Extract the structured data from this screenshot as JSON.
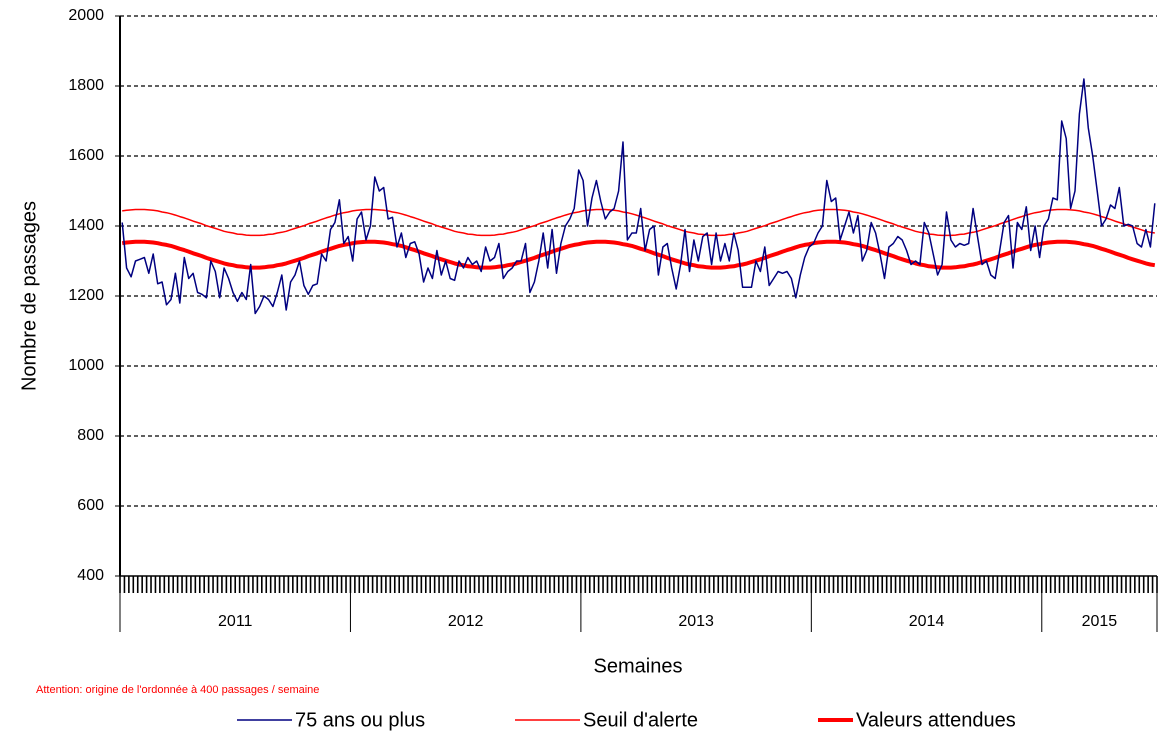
{
  "chart_data": {
    "type": "line",
    "y_label": "Nombre de passages",
    "x_label": "Semaines",
    "annotation": "Attention: origine de l'ordonnée à 400 passages / semaine",
    "ylim": [
      400,
      2000
    ],
    "yticks": [
      400,
      600,
      800,
      1000,
      1200,
      1400,
      1600,
      1800,
      2000
    ],
    "grid": true,
    "legend": "bottom",
    "categories": [
      "2011",
      "2011",
      "2011",
      "2011",
      "2011",
      "2011",
      "2011",
      "2011",
      "2011",
      "2011",
      "2011",
      "2011",
      "2011",
      "2011",
      "2011",
      "2011",
      "2011",
      "2011",
      "2011",
      "2011",
      "2011",
      "2011",
      "2011",
      "2011",
      "2011",
      "2011",
      "2011",
      "2011",
      "2011",
      "2011",
      "2011",
      "2011",
      "2011",
      "2011",
      "2011",
      "2011",
      "2011",
      "2011",
      "2011",
      "2011",
      "2011",
      "2011",
      "2011",
      "2011",
      "2011",
      "2011",
      "2011",
      "2011",
      "2011",
      "2011",
      "2011",
      "2011",
      "2012",
      "2012",
      "2012",
      "2012",
      "2012",
      "2012",
      "2012",
      "2012",
      "2012",
      "2012",
      "2012",
      "2012",
      "2012",
      "2012",
      "2012",
      "2012",
      "2012",
      "2012",
      "2012",
      "2012",
      "2012",
      "2012",
      "2012",
      "2012",
      "2012",
      "2012",
      "2012",
      "2012",
      "2012",
      "2012",
      "2012",
      "2012",
      "2012",
      "2012",
      "2012",
      "2012",
      "2012",
      "2012",
      "2012",
      "2012",
      "2012",
      "2012",
      "2012",
      "2012",
      "2012",
      "2012",
      "2012",
      "2012",
      "2012",
      "2012",
      "2012",
      "2012",
      "2013",
      "2013",
      "2013",
      "2013",
      "2013",
      "2013",
      "2013",
      "2013",
      "2013",
      "2013",
      "2013",
      "2013",
      "2013",
      "2013",
      "2013",
      "2013",
      "2013",
      "2013",
      "2013",
      "2013",
      "2013",
      "2013",
      "2013",
      "2013",
      "2013",
      "2013",
      "2013",
      "2013",
      "2013",
      "2013",
      "2013",
      "2013",
      "2013",
      "2013",
      "2013",
      "2013",
      "2013",
      "2013",
      "2013",
      "2013",
      "2013",
      "2013",
      "2013",
      "2013",
      "2013",
      "2013",
      "2013",
      "2013",
      "2013",
      "2013",
      "2013",
      "2013",
      "2014",
      "2014",
      "2014",
      "2014",
      "2014",
      "2014",
      "2014",
      "2014",
      "2014",
      "2014",
      "2014",
      "2014",
      "2014",
      "2014",
      "2014",
      "2014",
      "2014",
      "2014",
      "2014",
      "2014",
      "2014",
      "2014",
      "2014",
      "2014",
      "2014",
      "2014",
      "2014",
      "2014",
      "2014",
      "2014",
      "2014",
      "2014",
      "2014",
      "2014",
      "2014",
      "2014",
      "2014",
      "2014",
      "2014",
      "2014",
      "2014",
      "2014",
      "2014",
      "2014",
      "2014",
      "2014",
      "2014",
      "2014",
      "2014",
      "2014",
      "2014",
      "2014",
      "2015",
      "2015",
      "2015",
      "2015",
      "2015",
      "2015",
      "2015",
      "2015",
      "2015",
      "2015",
      "2015",
      "2015",
      "2015",
      "2015",
      "2015",
      "2015",
      "2015",
      "2015",
      "2015",
      "2015",
      "2015",
      "2015",
      "2015",
      "2015",
      "2015",
      "2015"
    ],
    "series": [
      {
        "name": "75 ans ou plus",
        "color": "#000080",
        "line_width": 1.5,
        "values": [
          1410,
          1280,
          1255,
          1300,
          1305,
          1310,
          1265,
          1320,
          1235,
          1240,
          1175,
          1190,
          1265,
          1180,
          1310,
          1250,
          1265,
          1210,
          1205,
          1195,
          1300,
          1270,
          1195,
          1280,
          1250,
          1210,
          1185,
          1210,
          1190,
          1290,
          1150,
          1170,
          1200,
          1190,
          1170,
          1210,
          1260,
          1160,
          1240,
          1260,
          1300,
          1230,
          1205,
          1230,
          1235,
          1320,
          1300,
          1390,
          1410,
          1475,
          1350,
          1370,
          1300,
          1420,
          1440,
          1360,
          1400,
          1540,
          1500,
          1510,
          1420,
          1425,
          1340,
          1380,
          1310,
          1350,
          1355,
          1320,
          1240,
          1280,
          1250,
          1330,
          1260,
          1300,
          1250,
          1245,
          1300,
          1280,
          1310,
          1290,
          1300,
          1270,
          1340,
          1300,
          1310,
          1350,
          1250,
          1270,
          1280,
          1300,
          1300,
          1350,
          1210,
          1240,
          1300,
          1380,
          1280,
          1390,
          1265,
          1350,
          1400,
          1420,
          1450,
          1560,
          1530,
          1400,
          1480,
          1530,
          1470,
          1420,
          1440,
          1450,
          1500,
          1640,
          1360,
          1380,
          1380,
          1450,
          1330,
          1390,
          1400,
          1260,
          1340,
          1350,
          1280,
          1220,
          1290,
          1390,
          1270,
          1360,
          1300,
          1370,
          1380,
          1290,
          1380,
          1300,
          1350,
          1300,
          1380,
          1330,
          1225,
          1225,
          1225,
          1300,
          1270,
          1340,
          1230,
          1250,
          1270,
          1265,
          1270,
          1250,
          1195,
          1260,
          1310,
          1340,
          1350,
          1380,
          1400,
          1530,
          1470,
          1480,
          1360,
          1400,
          1440,
          1380,
          1430,
          1300,
          1330,
          1410,
          1380,
          1320,
          1250,
          1340,
          1350,
          1370,
          1360,
          1330,
          1290,
          1300,
          1290,
          1410,
          1380,
          1320,
          1260,
          1290,
          1440,
          1360,
          1340,
          1350,
          1345,
          1350,
          1450,
          1370,
          1290,
          1300,
          1260,
          1250,
          1330,
          1410,
          1430,
          1280,
          1410,
          1390,
          1455,
          1330,
          1400,
          1310,
          1400,
          1420,
          1480,
          1475,
          1700,
          1650,
          1450,
          1500,
          1720,
          1820,
          1680,
          1600,
          1500,
          1400,
          1420,
          1460,
          1450,
          1510,
          1400,
          1405,
          1400,
          1350,
          1340,
          1390,
          1340,
          1465
        ]
      },
      {
        "name": "Seuil d'alerte",
        "color": "#ff0000",
        "line_width": 1.5,
        "values": [
          1443,
          1445,
          1446,
          1447,
          1447,
          1447,
          1446,
          1445,
          1443,
          1440,
          1438,
          1435,
          1431,
          1427,
          1423,
          1419,
          1414,
          1410,
          1406,
          1401,
          1397,
          1393,
          1389,
          1385,
          1382,
          1380,
          1377,
          1376,
          1374,
          1373,
          1373,
          1373,
          1374,
          1376,
          1377,
          1380,
          1382,
          1385,
          1389,
          1393,
          1397,
          1401,
          1406,
          1410,
          1414,
          1419,
          1423,
          1427,
          1431,
          1435,
          1438,
          1440,
          1443,
          1445,
          1446,
          1447,
          1447,
          1447,
          1446,
          1445,
          1443,
          1440,
          1438,
          1435,
          1431,
          1427,
          1423,
          1419,
          1414,
          1410,
          1406,
          1401,
          1397,
          1393,
          1389,
          1385,
          1382,
          1380,
          1377,
          1376,
          1374,
          1373,
          1373,
          1373,
          1374,
          1376,
          1377,
          1380,
          1382,
          1385,
          1389,
          1393,
          1397,
          1401,
          1406,
          1410,
          1414,
          1419,
          1423,
          1427,
          1431,
          1435,
          1438,
          1440,
          1443,
          1445,
          1446,
          1447,
          1447,
          1447,
          1446,
          1445,
          1443,
          1440,
          1438,
          1435,
          1431,
          1427,
          1423,
          1419,
          1414,
          1410,
          1406,
          1401,
          1397,
          1393,
          1389,
          1385,
          1382,
          1380,
          1377,
          1376,
          1374,
          1373,
          1373,
          1373,
          1374,
          1376,
          1377,
          1380,
          1382,
          1385,
          1389,
          1393,
          1397,
          1401,
          1406,
          1410,
          1414,
          1419,
          1423,
          1427,
          1431,
          1435,
          1438,
          1440,
          1443,
          1445,
          1446,
          1447,
          1447,
          1447,
          1446,
          1445,
          1443,
          1440,
          1438,
          1435,
          1431,
          1427,
          1423,
          1419,
          1414,
          1410,
          1406,
          1401,
          1397,
          1393,
          1389,
          1385,
          1382,
          1380,
          1377,
          1376,
          1374,
          1373,
          1373,
          1373,
          1374,
          1376,
          1377,
          1380,
          1382,
          1385,
          1389,
          1393,
          1397,
          1401,
          1406,
          1410,
          1414,
          1419,
          1423,
          1427,
          1431,
          1435,
          1438,
          1440,
          1443,
          1445,
          1446,
          1447,
          1447,
          1447,
          1446,
          1445,
          1443,
          1440,
          1438,
          1435,
          1431,
          1427,
          1423,
          1419,
          1414,
          1410,
          1406,
          1401,
          1397,
          1393,
          1389,
          1385,
          1382,
          1380
        ]
      },
      {
        "name": "Valeurs attendues",
        "color": "#ff0000",
        "line_width": 4,
        "values": [
          1351,
          1353,
          1354,
          1355,
          1355,
          1355,
          1354,
          1353,
          1351,
          1348,
          1346,
          1343,
          1339,
          1335,
          1331,
          1327,
          1322,
          1318,
          1314,
          1309,
          1305,
          1301,
          1297,
          1293,
          1290,
          1288,
          1285,
          1284,
          1282,
          1281,
          1281,
          1281,
          1282,
          1284,
          1285,
          1288,
          1290,
          1293,
          1297,
          1301,
          1305,
          1309,
          1314,
          1318,
          1322,
          1327,
          1331,
          1335,
          1339,
          1343,
          1346,
          1348,
          1351,
          1353,
          1354,
          1355,
          1355,
          1355,
          1354,
          1353,
          1351,
          1348,
          1346,
          1343,
          1339,
          1335,
          1331,
          1327,
          1322,
          1318,
          1314,
          1309,
          1305,
          1301,
          1297,
          1293,
          1290,
          1288,
          1285,
          1284,
          1282,
          1281,
          1281,
          1281,
          1282,
          1284,
          1285,
          1288,
          1290,
          1293,
          1297,
          1301,
          1305,
          1309,
          1314,
          1318,
          1322,
          1327,
          1331,
          1335,
          1339,
          1343,
          1346,
          1348,
          1351,
          1353,
          1354,
          1355,
          1355,
          1355,
          1354,
          1353,
          1351,
          1348,
          1346,
          1343,
          1339,
          1335,
          1331,
          1327,
          1322,
          1318,
          1314,
          1309,
          1305,
          1301,
          1297,
          1293,
          1290,
          1288,
          1285,
          1284,
          1282,
          1281,
          1281,
          1281,
          1282,
          1284,
          1285,
          1288,
          1290,
          1293,
          1297,
          1301,
          1305,
          1309,
          1314,
          1318,
          1322,
          1327,
          1331,
          1335,
          1339,
          1343,
          1346,
          1348,
          1351,
          1353,
          1354,
          1355,
          1355,
          1355,
          1354,
          1353,
          1351,
          1348,
          1346,
          1343,
          1339,
          1335,
          1331,
          1327,
          1322,
          1318,
          1314,
          1309,
          1305,
          1301,
          1297,
          1293,
          1290,
          1288,
          1285,
          1284,
          1282,
          1281,
          1281,
          1281,
          1282,
          1284,
          1285,
          1288,
          1290,
          1293,
          1297,
          1301,
          1305,
          1309,
          1314,
          1318,
          1322,
          1327,
          1331,
          1335,
          1339,
          1343,
          1346,
          1348,
          1351,
          1353,
          1354,
          1355,
          1355,
          1355,
          1354,
          1353,
          1351,
          1348,
          1346,
          1343,
          1339,
          1335,
          1331,
          1327,
          1322,
          1318,
          1314,
          1309,
          1305,
          1301,
          1297,
          1293,
          1290,
          1288
        ]
      }
    ]
  }
}
